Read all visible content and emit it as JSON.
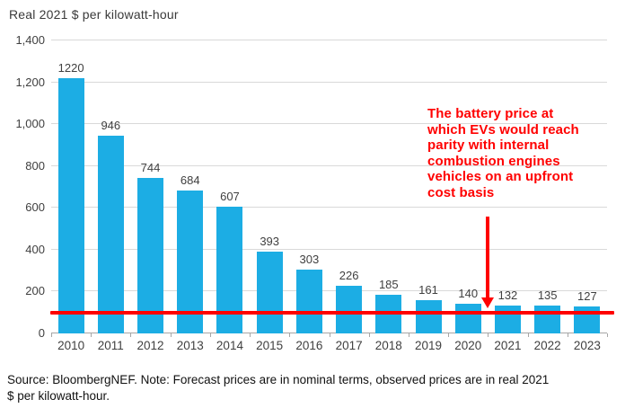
{
  "title": "Real 2021 $ per kilowatt-hour",
  "chart_data": {
    "type": "bar",
    "categories": [
      "2010",
      "2011",
      "2012",
      "2013",
      "2014",
      "2015",
      "2016",
      "2017",
      "2018",
      "2019",
      "2020",
      "2021",
      "2022",
      "2023"
    ],
    "values": [
      1220,
      946,
      744,
      684,
      607,
      393,
      303,
      226,
      185,
      161,
      140,
      132,
      135,
      127
    ],
    "title": "Real 2021 $ per kilowatt-hour",
    "xlabel": "",
    "ylabel": "Real 2021 $ per kilowatt-hour",
    "ylim": [
      0,
      1400
    ],
    "ytick_interval": 200,
    "yticks": [
      "0",
      "200",
      "400",
      "600",
      "800",
      "1,000",
      "1,200",
      "1,400"
    ],
    "grid": true,
    "legend": "none",
    "bar_color": "#1cade4",
    "grid_color": "#d9d9d9",
    "axis_color": "#a6a6a6",
    "label_color": "#404040",
    "parity_line": {
      "value": 100,
      "color": "#ff0000"
    }
  },
  "annotation": {
    "text": "The battery price at\nwhich EVs would reach\nparity with internal\ncombustion engines\nvehicles on an upfront\ncost basis",
    "color": "#ff0000",
    "arrow": "red-down-arrow"
  },
  "source_note": "Source: BloombergNEF. Note: Forecast prices are in nominal terms, observed prices are in real 2021\n$ per kilowatt-hour."
}
